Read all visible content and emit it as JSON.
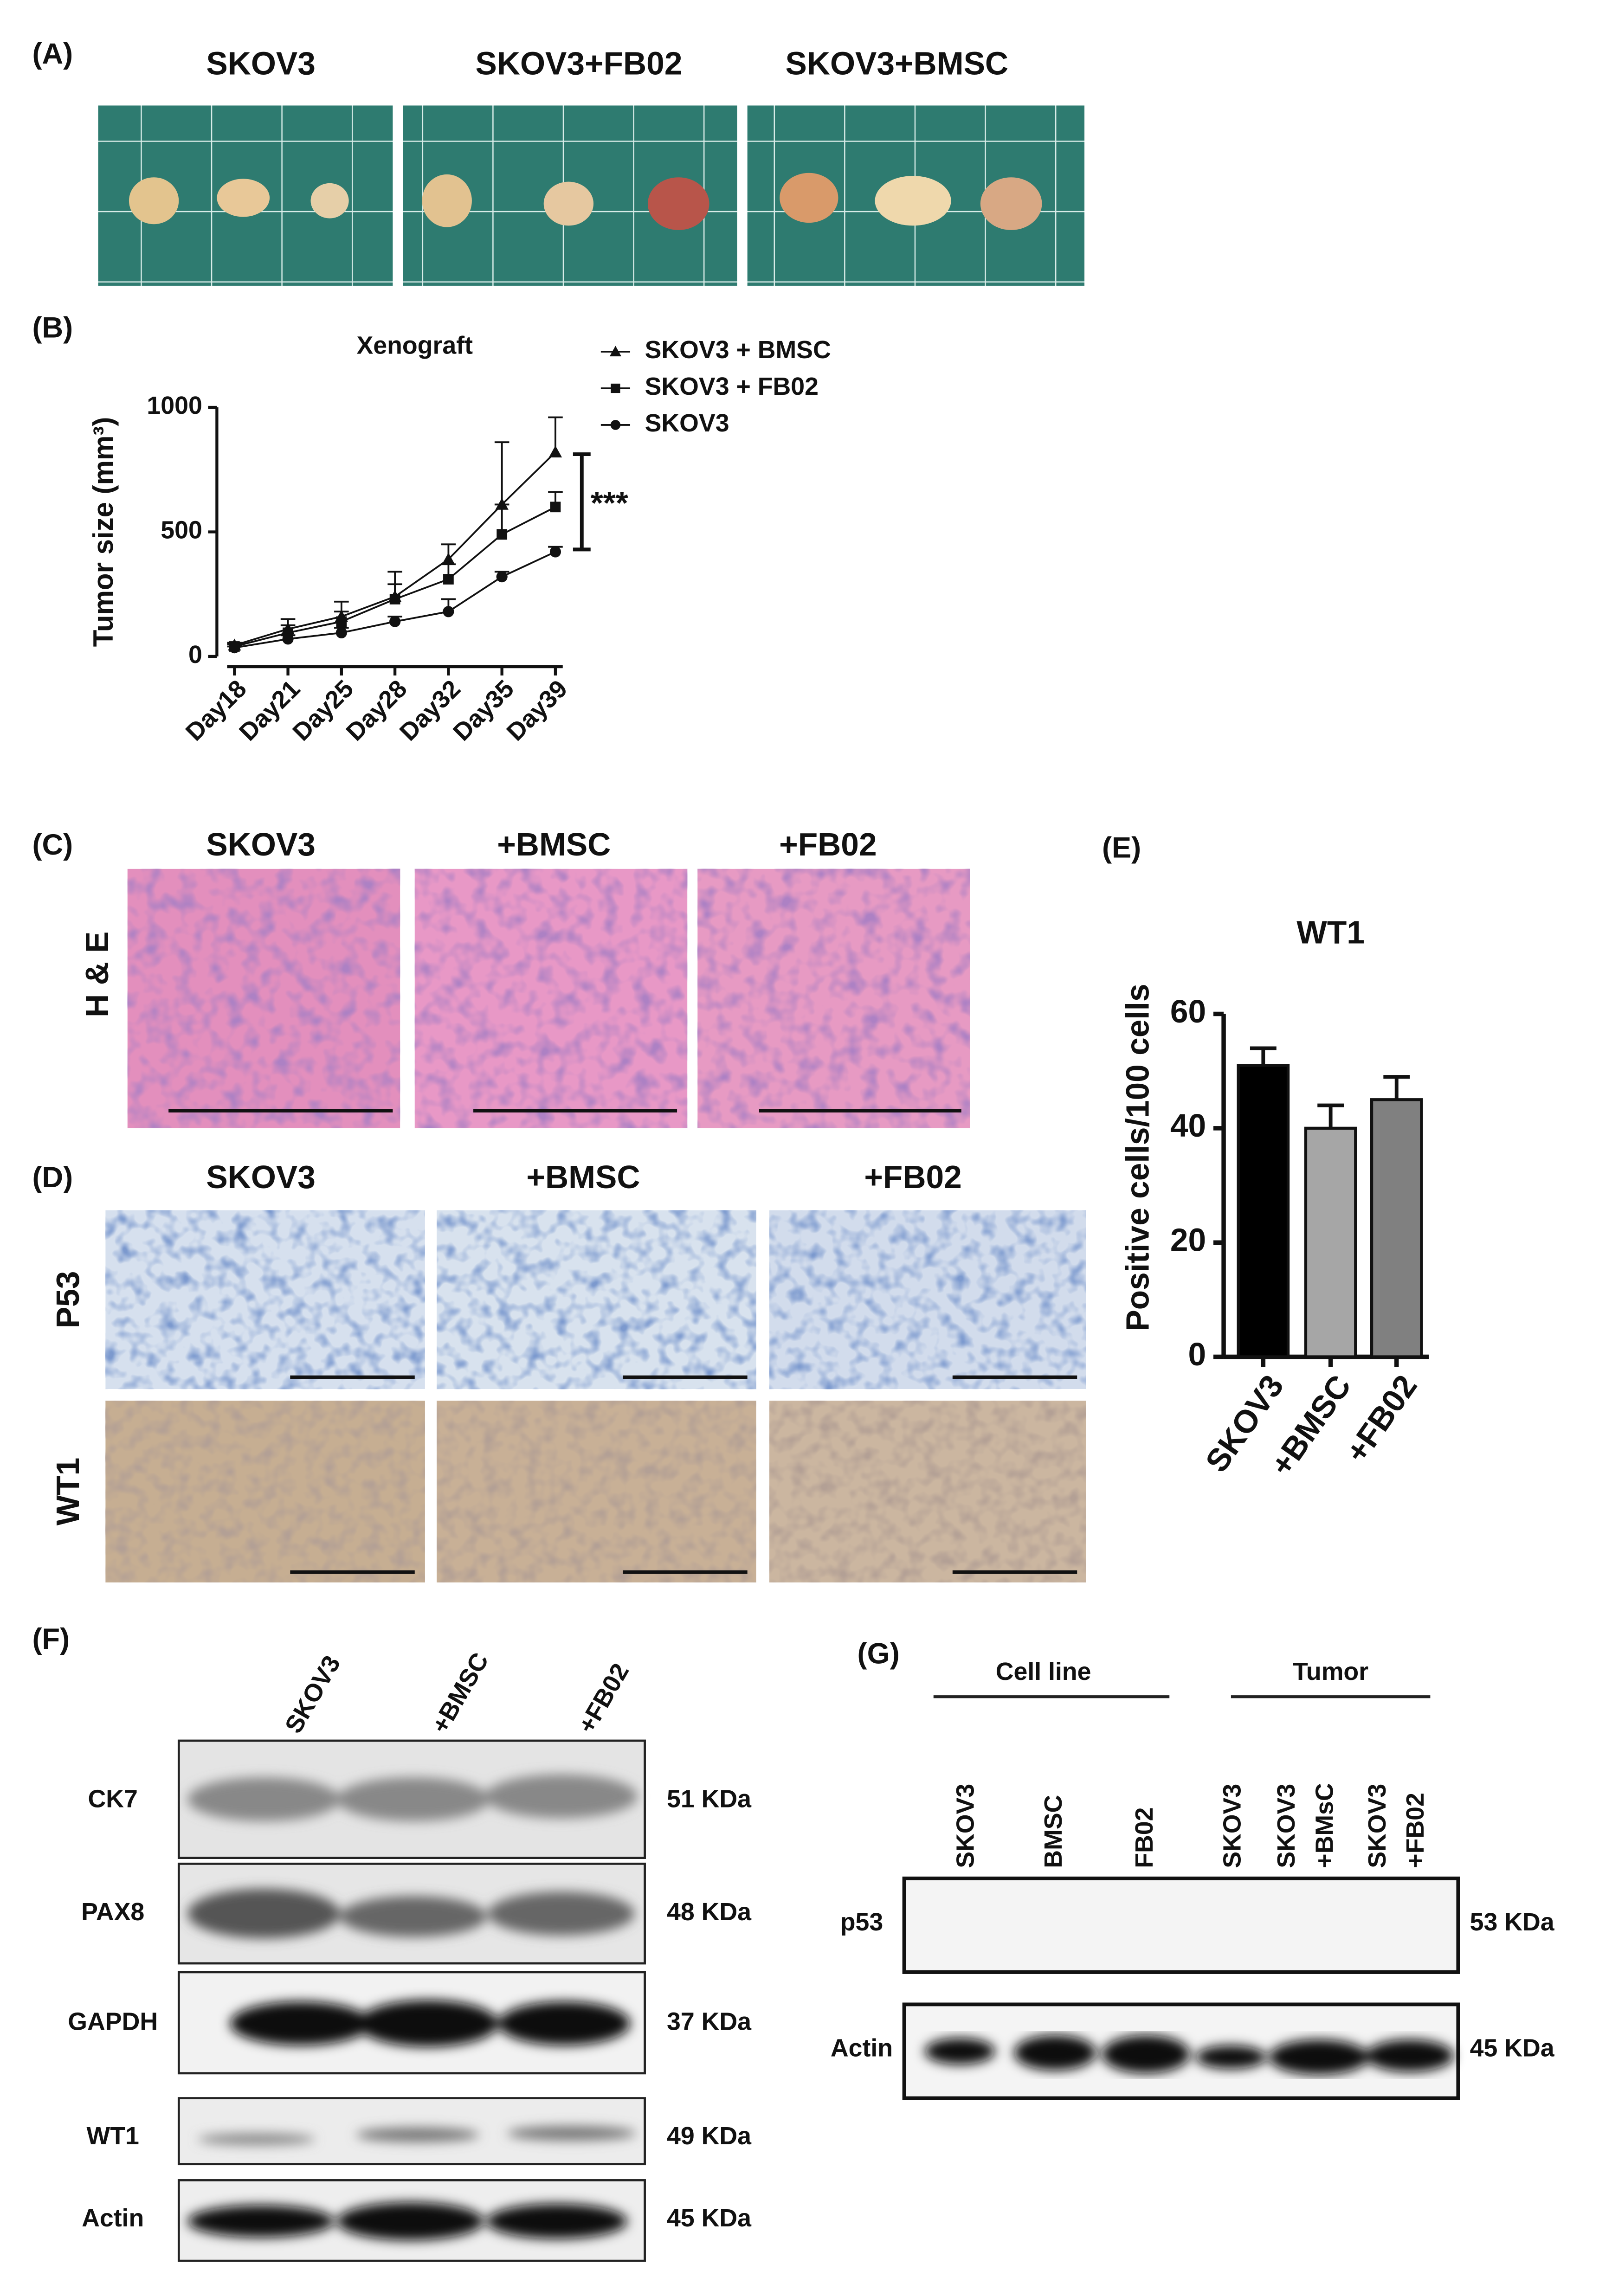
{
  "panel_labels": [
    "(A)",
    "(B)",
    "(C)",
    "(D)",
    "(E)",
    "(F)",
    "(G)"
  ],
  "panel_a": {
    "columns": [
      "SKOV3",
      "SKOV3+FB02",
      "SKOV3+BMSC"
    ]
  },
  "panel_c": {
    "columns": [
      "SKOV3",
      "+BMSC",
      "+FB02"
    ],
    "row": "H & E"
  },
  "panel_d": {
    "columns": [
      "SKOV3",
      "+BMSC",
      "+FB02"
    ],
    "rows": [
      "P53",
      "WT1"
    ]
  },
  "panel_f": {
    "lanes": [
      "SKOV3",
      "+BMSC",
      "+FB02"
    ],
    "rows": [
      {
        "label": "CK7",
        "size": "51 KDa"
      },
      {
        "label": "PAX8",
        "size": "48 KDa"
      },
      {
        "label": "GAPDH",
        "size": "37 KDa"
      },
      {
        "label": "WT1",
        "size": "49 KDa"
      },
      {
        "label": "Actin",
        "size": "45 KDa"
      }
    ]
  },
  "panel_g": {
    "groups": [
      "Cell line",
      "Tumor"
    ],
    "lanes": [
      [
        "SKOV3"
      ],
      [
        "BMSC"
      ],
      [
        "FB02"
      ],
      [
        "SKOV3"
      ],
      [
        "SKOV3",
        "+BMsC"
      ],
      [
        "SKOV3",
        "+FB02"
      ]
    ],
    "rows": [
      {
        "label": "p53",
        "size": "53 KDa"
      },
      {
        "label": "Actin",
        "size": "45 KDa"
      }
    ]
  },
  "chart_data": [
    {
      "type": "line",
      "title": "Xenograft",
      "y_label": "Tumor  size (mm³)",
      "categories": [
        "Day18",
        "Day21",
        "Day25",
        "Day28",
        "Day32",
        "Day35",
        "Day39"
      ],
      "series": [
        {
          "name": "SKOV3 + BMSC",
          "marker": "triangle",
          "color": "#111111",
          "values": [
            45,
            110,
            160,
            240,
            390,
            610,
            820
          ],
          "errors": [
            10,
            40,
            60,
            100,
            60,
            250,
            140
          ]
        },
        {
          "name": "SKOV3 + FB02",
          "marker": "square",
          "color": "#111111",
          "values": [
            40,
            95,
            140,
            230,
            310,
            490,
            600
          ],
          "errors": [
            10,
            30,
            40,
            60,
            60,
            120,
            60
          ]
        },
        {
          "name": "SKOV3",
          "marker": "circle",
          "color": "#111111",
          "values": [
            35,
            70,
            95,
            140,
            180,
            320,
            420
          ],
          "errors": [
            5,
            15,
            20,
            20,
            50,
            20,
            20
          ]
        }
      ],
      "ylim": [
        0,
        1000
      ],
      "yticks": [
        0,
        500,
        1000
      ],
      "annotation": "***"
    },
    {
      "type": "bar",
      "title": "WT1",
      "y_label": "Positive cells/100 cells",
      "categories": [
        "SKOV3",
        "+BMSC",
        "+FB02"
      ],
      "values": [
        51,
        40,
        45
      ],
      "errors": [
        3,
        4,
        4
      ],
      "colors": [
        "#000000",
        "#a6a6a6",
        "#808080"
      ],
      "ylim": [
        0,
        60
      ],
      "yticks": [
        0,
        20,
        40,
        60
      ]
    }
  ]
}
